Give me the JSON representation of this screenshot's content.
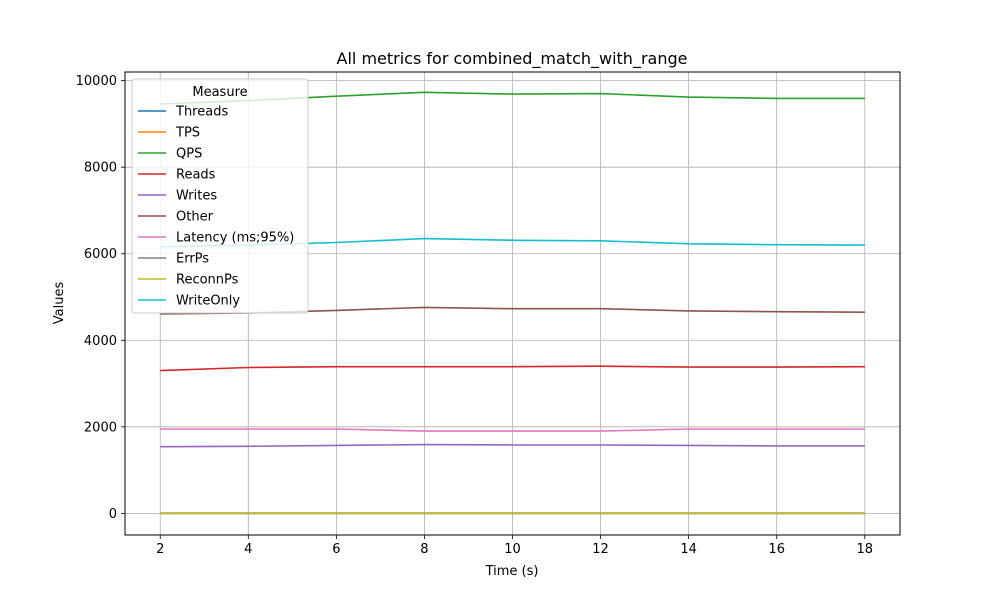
{
  "chart_data": {
    "type": "line",
    "title": "All metrics for combined_match_with_range",
    "xlabel": "Time (s)",
    "ylabel": "Values",
    "x": [
      2,
      4,
      6,
      8,
      10,
      12,
      14,
      16,
      18
    ],
    "xticks": [
      2,
      4,
      6,
      8,
      10,
      12,
      14,
      16,
      18
    ],
    "yticks": [
      0,
      2000,
      4000,
      6000,
      8000,
      10000
    ],
    "xlim": [
      1.2,
      18.8
    ],
    "ylim": [
      -500,
      10200
    ],
    "grid": true,
    "legend": {
      "title": "Measure",
      "position": "upper-left"
    },
    "series": [
      {
        "name": "Threads",
        "color": "#1f77b4",
        "values": [
          4,
          4,
          4,
          4,
          4,
          4,
          4,
          4,
          4
        ]
      },
      {
        "name": "TPS",
        "color": "#ff7f0e",
        "values": [
          3,
          3,
          3,
          3,
          3,
          3,
          3,
          3,
          3
        ]
      },
      {
        "name": "QPS",
        "color": "#2ca02c",
        "values": [
          9460,
          9540,
          9640,
          9730,
          9690,
          9700,
          9620,
          9590,
          9590
        ]
      },
      {
        "name": "Reads",
        "color": "#d62728",
        "values": [
          3300,
          3370,
          3390,
          3390,
          3390,
          3400,
          3380,
          3380,
          3390
        ]
      },
      {
        "name": "Writes",
        "color": "#9467bd",
        "values": [
          1540,
          1550,
          1570,
          1590,
          1580,
          1580,
          1570,
          1560,
          1560
        ]
      },
      {
        "name": "Other",
        "color": "#8c564b",
        "values": [
          4610,
          4630,
          4690,
          4760,
          4730,
          4730,
          4680,
          4660,
          4650
        ]
      },
      {
        "name": "Latency (ms;95%)",
        "color": "#e377c2",
        "values": [
          1950,
          1950,
          1950,
          1900,
          1900,
          1900,
          1950,
          1950,
          1950
        ]
      },
      {
        "name": "ErrPs",
        "color": "#7f7f7f",
        "values": [
          0,
          0,
          0,
          0,
          0,
          0,
          0,
          0,
          0
        ]
      },
      {
        "name": "ReconnPs",
        "color": "#bcbd22",
        "values": [
          0,
          0,
          0,
          0,
          0,
          0,
          0,
          0,
          0
        ]
      },
      {
        "name": "WriteOnly",
        "color": "#17becf",
        "values": [
          6160,
          6200,
          6260,
          6350,
          6310,
          6300,
          6230,
          6210,
          6200
        ]
      }
    ]
  }
}
